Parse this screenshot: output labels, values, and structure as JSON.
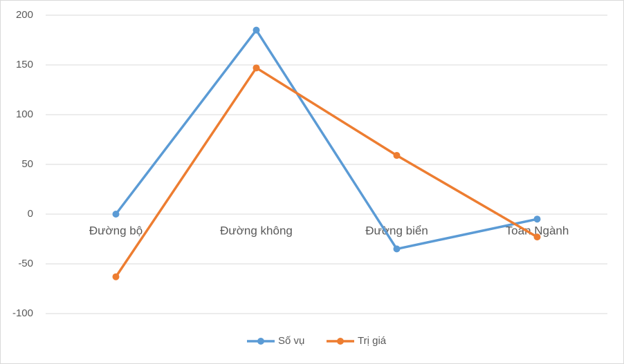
{
  "chart_data": {
    "type": "line",
    "categories": [
      "Đường bộ",
      "Đường không",
      "Đường biển",
      "Toàn Ngành"
    ],
    "series": [
      {
        "name": "Số vụ",
        "color": "#5b9bd5",
        "values": [
          0,
          185,
          -35,
          -5
        ]
      },
      {
        "name": "Trị giá",
        "color": "#ed7d31",
        "values": [
          -63,
          147,
          59,
          -23
        ]
      }
    ],
    "ylim": [
      -100,
      200
    ],
    "yticks": [
      -100,
      -50,
      0,
      50,
      100,
      150,
      200
    ],
    "grid": true,
    "legend": "bottom"
  }
}
